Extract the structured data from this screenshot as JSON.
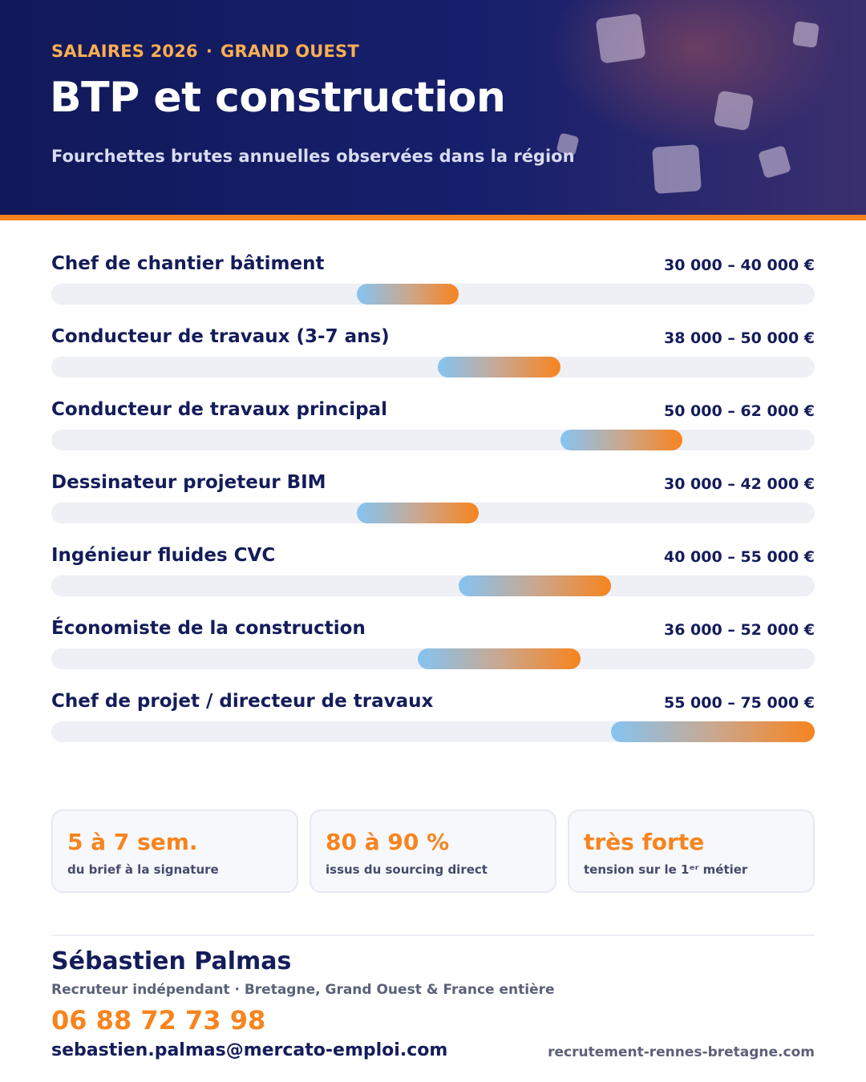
{
  "header": {
    "kicker_left": "SALAIRES 2026",
    "kicker_sep": "·",
    "kicker_right": "GRAND OUEST",
    "title": "BTP et construction",
    "subtitle": "Fourchettes brutes annuelles observées dans la région"
  },
  "colors": {
    "navy": "#141c5a",
    "accent_orange": "#f7841e",
    "bar_start_blue": "#84c4f2",
    "track": "#eef0f6"
  },
  "chart_data": {
    "type": "bar",
    "orientation": "horizontal-range",
    "unit": "€",
    "xlim": [
      0,
      75000
    ],
    "categories": [
      "Chef de chantier bâtiment",
      "Conducteur de travaux (3-7 ans)",
      "Conducteur de travaux principal",
      "Dessinateur projeteur BIM",
      "Ingénieur fluides CVC",
      "Économiste de la construction",
      "Chef de projet / directeur de travaux"
    ],
    "ranges": [
      {
        "min": 30000,
        "max": 40000,
        "label": "30 000 – 40 000 €"
      },
      {
        "min": 38000,
        "max": 50000,
        "label": "38 000 – 50 000 €"
      },
      {
        "min": 50000,
        "max": 62000,
        "label": "50 000 – 62 000 €"
      },
      {
        "min": 30000,
        "max": 42000,
        "label": "30 000 – 42 000 €"
      },
      {
        "min": 40000,
        "max": 55000,
        "label": "40 000 – 55 000 €"
      },
      {
        "min": 36000,
        "max": 52000,
        "label": "36 000 – 52 000 €"
      },
      {
        "min": 55000,
        "max": 75000,
        "label": "55 000 – 75 000 €"
      }
    ]
  },
  "stats": [
    {
      "value": "5 à 7 sem.",
      "label": "du brief à la signature"
    },
    {
      "value": "80 à 90 %",
      "label": "issus du sourcing direct"
    },
    {
      "value": "très forte",
      "label": "tension sur le 1ᵉʳ métier"
    }
  ],
  "footer": {
    "name": "Sébastien Palmas",
    "role": "Recruteur indépendant · Bretagne, Grand Ouest & France entière",
    "phone": "06 88 72 73 98",
    "email": "sebastien.palmas@mercato-emploi.com",
    "website": "recrutement-rennes-bretagne.com"
  }
}
